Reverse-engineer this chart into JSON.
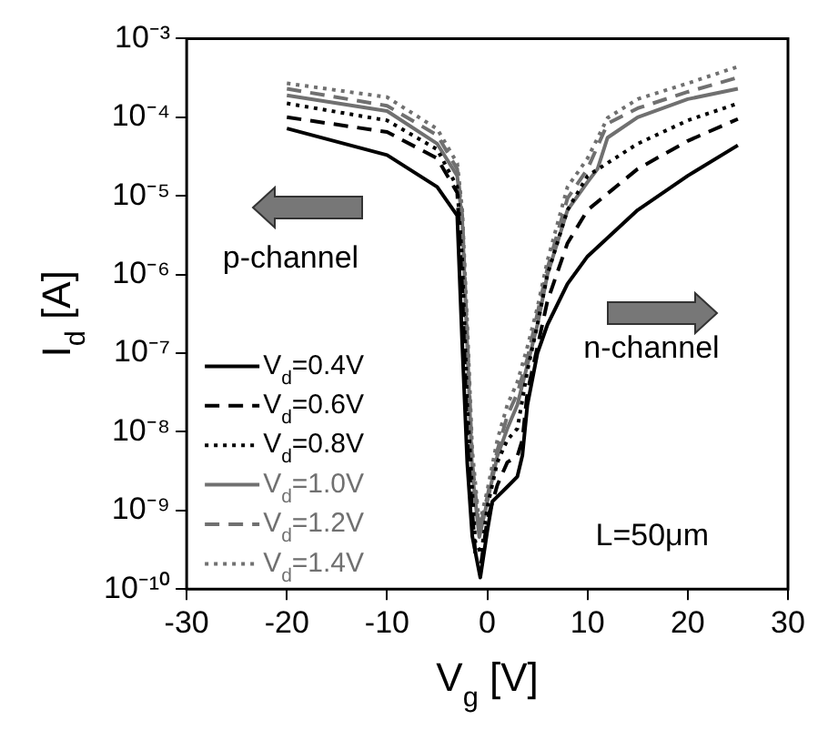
{
  "chart_data": {
    "type": "line",
    "xlabel": "V$_{g}$ [V]",
    "ylabel": "I$_{d}$ [A]",
    "log": "y",
    "xlim": [
      -30,
      30
    ],
    "xticks": [
      -30,
      -20,
      -10,
      0,
      10,
      20,
      30
    ],
    "ylim": [
      1e-10,
      0.001
    ],
    "yticks": [
      {
        "value": 1e-10,
        "label": "10⁻¹⁰"
      },
      {
        "value": 1e-09,
        "label": "10⁻⁹"
      },
      {
        "value": 1e-08,
        "label": "10⁻⁸"
      },
      {
        "value": 1e-07,
        "label": "10⁻⁷"
      },
      {
        "value": 1e-06,
        "label": "10⁻⁶"
      },
      {
        "value": 1e-05,
        "label": "10⁻⁵"
      },
      {
        "value": 0.0001,
        "label": "10⁻⁴"
      },
      {
        "value": 0.001,
        "label": "10⁻³"
      }
    ],
    "grid": false,
    "legend": "bottom left",
    "marker": "none",
    "annotations": [
      "p-channel",
      "n-channel",
      "L=50μm"
    ],
    "series": [
      {
        "name": "V$_{d}$=0.4V",
        "color": "#000000",
        "line_style": "solid",
        "x": [
          -20,
          -10,
          -5,
          -3,
          -2.5,
          -2,
          -1.5,
          -0.7,
          0,
          0.5,
          1,
          2,
          3,
          3.5,
          4,
          5,
          6,
          8,
          10,
          15,
          20,
          25
        ],
        "values": [
          7.2e-05,
          3.3e-05,
          1.3e-05,
          5.6e-06,
          1.3e-07,
          4e-09,
          4.7e-10,
          1.4e-10,
          5.5e-10,
          1.3e-09,
          1.5e-09,
          2e-09,
          2.7e-09,
          5e-09,
          2.2e-08,
          1e-07,
          2.3e-07,
          7.6e-07,
          1.7e-06,
          6.6e-06,
          1.8e-05,
          4.4e-05
        ]
      },
      {
        "name": "V$_{d}$=0.6V",
        "color": "#000000",
        "line_style": "dashed",
        "x": [
          -20,
          -10,
          -5,
          -3,
          -2.5,
          -2,
          -1.2,
          -0.6,
          0,
          1,
          2,
          3,
          3.5,
          4,
          5,
          6,
          8,
          10,
          15,
          20,
          25
        ],
        "values": [
          0.0001,
          6.5e-05,
          3e-05,
          1.1e-05,
          6.3e-07,
          7.9e-09,
          2.8e-10,
          2.2e-10,
          7.6e-10,
          2.1e-09,
          4.1e-09,
          4.9e-09,
          7.9e-09,
          3.2e-08,
          1.2e-07,
          4.6e-07,
          2.5e-06,
          6.6e-06,
          2.2e-05,
          5e-05,
          9.5e-05
        ]
      },
      {
        "name": "V$_{d}$=0.8V",
        "color": "#000000",
        "line_style": "dotted",
        "x": [
          -20,
          -10,
          -5,
          -3,
          -2.5,
          -2,
          -1.2,
          -0.6,
          0,
          1,
          2,
          3,
          4,
          5,
          6,
          8,
          10,
          15,
          20,
          25
        ],
        "values": [
          0.00015,
          9.1e-05,
          3.9e-05,
          1.3e-05,
          1.5e-06,
          2.2e-08,
          4e-10,
          2.8e-10,
          1.1e-09,
          4.1e-09,
          7.9e-09,
          1.1e-08,
          6e-08,
          2.3e-07,
          1e-06,
          6.6e-06,
          1.8e-05,
          4.6e-05,
          9.1e-05,
          0.00015
        ]
      },
      {
        "name": "V$_{d}$=1.0V",
        "color": "#707070",
        "line_style": "solid",
        "x": [
          -20,
          -10,
          -5,
          -3,
          -2.5,
          -2,
          -1.5,
          -0.8,
          0,
          1,
          2,
          3,
          4,
          5,
          6,
          8,
          10,
          11,
          12,
          15,
          20,
          25
        ],
        "values": [
          0.00019,
          0.00012,
          4.6e-05,
          1.8e-05,
          4.8e-06,
          1.2e-07,
          3e-09,
          4.6e-10,
          1.3e-09,
          4.9e-09,
          1.1e-08,
          2.2e-08,
          7.1e-08,
          2.3e-07,
          1e-06,
          6.6e-06,
          1.5e-05,
          2.2e-05,
          5.5e-05,
          0.0001,
          0.00017,
          0.00023
        ]
      },
      {
        "name": "V$_{d}$=1.2V",
        "color": "#707070",
        "line_style": "dashed",
        "x": [
          -20,
          -10,
          -5,
          -3,
          -2.5,
          -2,
          -1.5,
          -0.8,
          0,
          1,
          2,
          3,
          4,
          5,
          6,
          8,
          10,
          12,
          15,
          20,
          25
        ],
        "values": [
          0.00023,
          0.00014,
          5.9e-05,
          2.2e-05,
          5.6e-06,
          1.7e-07,
          4.1e-09,
          5.5e-10,
          1.5e-09,
          5.8e-09,
          1.6e-08,
          3.1e-08,
          8.5e-08,
          3.2e-07,
          1.2e-06,
          9.3e-06,
          2.2e-05,
          8.3e-05,
          0.00013,
          0.00021,
          0.00032
        ]
      },
      {
        "name": "V$_{d}$=1.4V",
        "color": "#707070",
        "line_style": "dotted",
        "x": [
          -20,
          -10,
          -5,
          -3,
          -2.5,
          -2,
          -1.5,
          -0.8,
          0,
          1,
          2,
          3,
          4,
          5,
          6,
          8,
          10,
          12,
          15,
          20,
          25
        ],
        "values": [
          0.00027,
          0.00018,
          7.1e-05,
          2.6e-05,
          6.6e-06,
          2.3e-07,
          5.8e-09,
          6.5e-10,
          1.8e-09,
          7.9e-09,
          2.2e-08,
          4.3e-08,
          1.2e-07,
          3.8e-07,
          1.5e-06,
          1.3e-05,
          3e-05,
          9.8e-05,
          0.00017,
          0.00027,
          0.00044
        ]
      }
    ]
  }
}
